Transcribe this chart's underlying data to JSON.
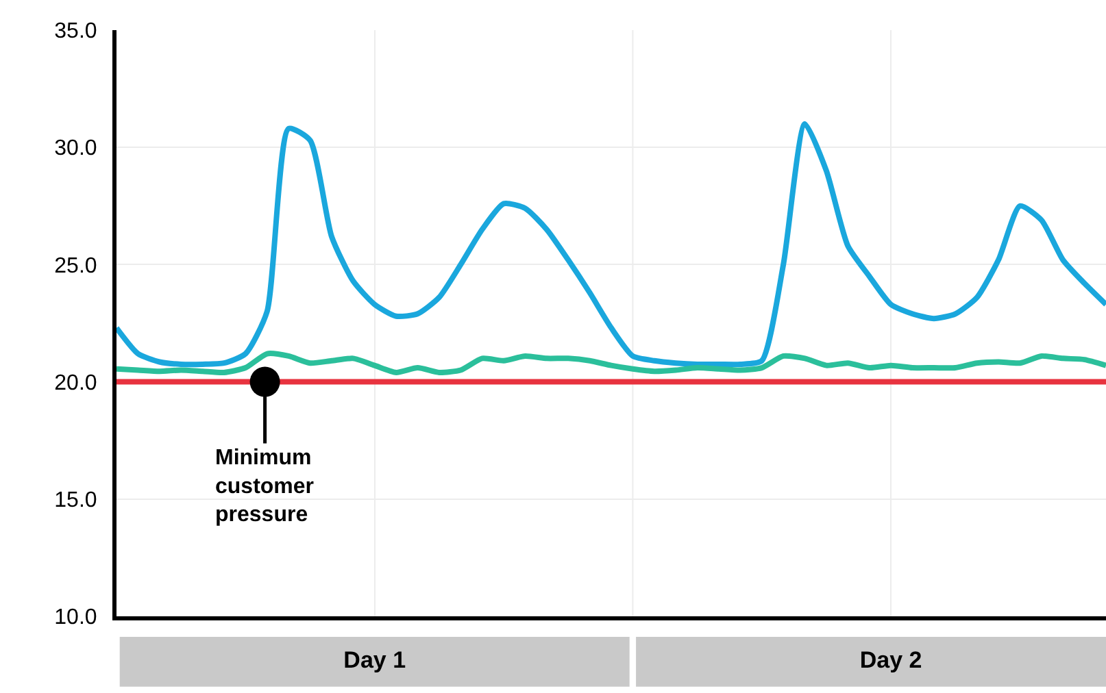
{
  "chart_data": {
    "type": "line",
    "categories": [
      null,
      null,
      null,
      null,
      null,
      null,
      null,
      null,
      null,
      null,
      null,
      null,
      "Day 1",
      null,
      null,
      null,
      null,
      null,
      null,
      null,
      null,
      null,
      null,
      null,
      null,
      null,
      null,
      null,
      null,
      null,
      null,
      null,
      null,
      null,
      null,
      null,
      "Day 2",
      null,
      null,
      null,
      null,
      null,
      null,
      null,
      null,
      null,
      null
    ],
    "ylim": [
      10,
      35
    ],
    "yticks": [
      {
        "value": 10,
        "label": "10.0"
      },
      {
        "value": 15,
        "label": "15.0"
      },
      {
        "value": 20,
        "label": "20.0"
      },
      {
        "value": 25,
        "label": "25.0"
      },
      {
        "value": 30,
        "label": "30.0"
      },
      {
        "value": 35,
        "label": "35.0"
      }
    ],
    "grid": true,
    "marker": "none",
    "line_style": "solid",
    "series": [
      {
        "color": "#1aa7dd",
        "values": [
          22.3,
          21.2,
          20.85,
          20.75,
          20.75,
          20.8,
          21.2,
          23.0,
          30.8,
          30.3,
          26.2,
          24.3,
          23.3,
          22.8,
          22.9,
          23.6,
          25.0,
          26.5,
          27.6,
          27.4,
          26.5,
          25.2,
          23.8,
          22.3,
          21.1,
          20.9,
          20.8,
          20.75,
          20.75,
          20.75,
          20.9,
          25.0,
          31.0,
          29.0,
          25.8,
          24.5,
          23.3,
          22.9,
          22.7,
          22.9,
          23.6,
          25.2,
          27.5,
          26.9,
          25.2,
          24.2,
          23.3
        ]
      },
      {
        "color": "#2bbf9b",
        "values": [
          20.55,
          20.5,
          20.45,
          20.5,
          20.45,
          20.4,
          20.6,
          21.2,
          21.1,
          20.8,
          20.9,
          21.0,
          20.7,
          20.4,
          20.6,
          20.4,
          20.5,
          21.0,
          20.9,
          21.1,
          21.0,
          21.0,
          20.9,
          20.7,
          20.55,
          20.45,
          20.5,
          20.6,
          20.55,
          20.5,
          20.6,
          21.1,
          21.0,
          20.7,
          20.8,
          20.6,
          20.7,
          20.6,
          20.6,
          20.6,
          20.8,
          20.85,
          20.8,
          21.1,
          21.0,
          20.95,
          20.7
        ]
      }
    ],
    "ref_lines": [
      {
        "axis": "y",
        "value": 20,
        "color": "#e8333f"
      }
    ],
    "annotations": [
      {
        "text": "Minimum\ncustomer\npressure",
        "y": 20
      }
    ]
  }
}
